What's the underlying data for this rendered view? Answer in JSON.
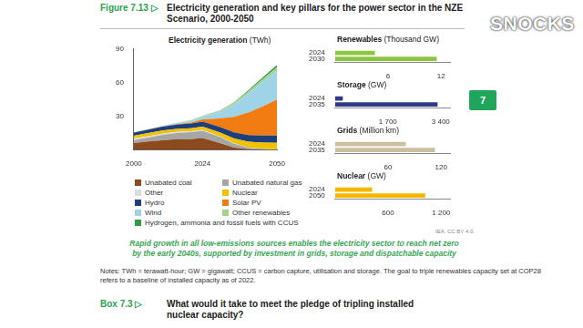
{
  "figure": {
    "label": "Figure 7.13 ▷",
    "title": "Electricity generation and key pillars for the power sector in the NZE Scenario, 2000-2050",
    "caption": "Rapid growth in all low-emissions sources enables the electricity sector to reach net zero by the early 2040s, supported by investment in grids, storage and dispatchable capacity",
    "notes": "Notes: TWh = terawatt-hour; GW = gigawatt; CCUS = carbon capture, utilisation and storage. The goal to triple renewables capacity set at COP28 refers to a baseline of installed capacity as of 2022.",
    "source": "IEA. CC BY 4.0."
  },
  "page": {
    "chapter": "7",
    "watermark": "SNOCKS",
    "box": {
      "label": "Box 7.3 ▷",
      "title": "What would it take to meet the pledge of tripling installed nuclear capacity?"
    }
  },
  "chart_data": [
    {
      "type": "area",
      "title": "Electricity generation (TWh)",
      "stacked": true,
      "grid": false,
      "legend": "bottom",
      "x": [
        2000,
        2005,
        2010,
        2015,
        2020,
        2024,
        2030,
        2035,
        2040,
        2045,
        2050
      ],
      "xlim": [
        2000,
        2050
      ],
      "xticks": [
        2000,
        2024,
        2050
      ],
      "ylim": [
        0,
        90
      ],
      "yticks": [
        30,
        60,
        90
      ],
      "series": [
        {
          "name": "Unabated coal",
          "color": "#8c4a1f",
          "values": [
            6,
            7.5,
            8.5,
            9.5,
            9.5,
            10.5,
            6,
            2,
            0.5,
            0.2,
            0
          ]
        },
        {
          "name": "Unabated natural gas",
          "color": "#a6a6a6",
          "values": [
            2.7,
            3.5,
            4.8,
            5.5,
            6.2,
            6.6,
            5.5,
            3.5,
            1.5,
            0.5,
            0.2
          ]
        },
        {
          "name": "Other",
          "color": "#dcdcdc",
          "values": [
            1.3,
            1.2,
            1.1,
            1.0,
            0.8,
            0.7,
            0.5,
            0.3,
            0.2,
            0.1,
            0.1
          ]
        },
        {
          "name": "Nuclear",
          "color": "#f2c200",
          "values": [
            2.6,
            2.8,
            2.8,
            2.6,
            2.7,
            2.9,
            3.5,
            4.2,
            5,
            5.6,
            6
          ]
        },
        {
          "name": "Hydro",
          "color": "#1f3f7a",
          "values": [
            2.7,
            3,
            3.5,
            4,
            4.4,
            4.4,
            5,
            5.5,
            6,
            6.3,
            6.5
          ]
        },
        {
          "name": "Solar PV",
          "color": "#f07c12",
          "values": [
            0,
            0,
            0.03,
            0.25,
            0.8,
            2.1,
            7.5,
            14,
            20,
            26,
            32
          ]
        },
        {
          "name": "Wind",
          "color": "#9fd3e8",
          "values": [
            0.03,
            0.1,
            0.35,
            0.8,
            1.6,
            2.5,
            6,
            11,
            17,
            22,
            26
          ]
        },
        {
          "name": "Other renewables",
          "color": "#a9d18e",
          "values": [
            0.2,
            0.3,
            0.4,
            0.5,
            0.6,
            0.7,
            1,
            1.5,
            2,
            2.5,
            3
          ]
        },
        {
          "name": "Hydrogen, ammonia and fossil fuels with CCUS",
          "color": "#2e9a4a",
          "values": [
            0,
            0,
            0,
            0,
            0,
            0,
            0.2,
            0.5,
            1,
            1.5,
            2
          ]
        }
      ]
    },
    {
      "type": "bar",
      "orientation": "horizontal",
      "grid": false,
      "title": "Renewables (Thousand GW)",
      "categories": [
        "2024",
        "2030"
      ],
      "values": [
        4.5,
        11.5
      ],
      "color": "#8cc63f",
      "xlim": [
        0,
        13
      ],
      "xticks": [
        6,
        12
      ]
    },
    {
      "type": "bar",
      "orientation": "horizontal",
      "grid": false,
      "title": "Storage (GW)",
      "categories": [
        "2024",
        "2035"
      ],
      "values": [
        250,
        3300
      ],
      "color": "#2e3a87",
      "xlim": [
        0,
        3700
      ],
      "xticks": [
        {
          "value": 1700,
          "label": "1 700"
        },
        {
          "value": 3400,
          "label": "3 400"
        }
      ]
    },
    {
      "type": "bar",
      "orientation": "horizontal",
      "grid": false,
      "title": "Grids (Million km)",
      "categories": [
        "2024",
        "2035"
      ],
      "values": [
        80,
        113
      ],
      "color": "#cbbf9f",
      "xlim": [
        0,
        130
      ],
      "xticks": [
        60,
        120
      ]
    },
    {
      "type": "bar",
      "orientation": "horizontal",
      "grid": false,
      "title": "Nuclear (GW)",
      "categories": [
        "2024",
        "2050"
      ],
      "values": [
        420,
        1020
      ],
      "color": "#f5b800",
      "xlim": [
        0,
        1300
      ],
      "xticks": [
        600,
        {
          "value": 1200,
          "label": "1 200"
        }
      ]
    }
  ]
}
